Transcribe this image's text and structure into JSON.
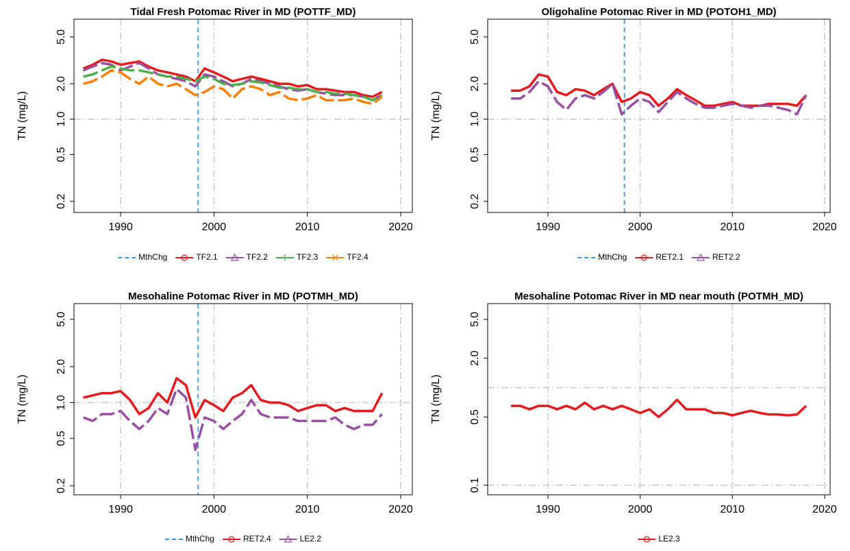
{
  "chart_data": [
    {
      "type": "line",
      "title": "Tidal Fresh Potomac River in MD (POTTF_MD)",
      "y_label": "TN (mg/L)",
      "log_y": true,
      "grid": true,
      "xlim": [
        1985,
        2021.25
      ],
      "xticks": [
        1990,
        2000,
        2010,
        2020
      ],
      "ylim": [
        0.161,
        7.08
      ],
      "yticks": [
        0.2,
        0.5,
        {
          "value": 1,
          "label": "1.0"
        },
        {
          "value": 2,
          "label": "2.0"
        },
        {
          "value": 5,
          "label": "5.0"
        }
      ],
      "hlines": [
        1
      ],
      "vline": {
        "name": "MthChg",
        "x": 1998.3,
        "color": "#3399ee"
      },
      "x": [
        1986,
        1987,
        1988,
        1989,
        1990,
        1991,
        1992,
        1993,
        1994,
        1995,
        1996,
        1997,
        1998,
        1999,
        2000,
        2001,
        2002,
        2003,
        2004,
        2005,
        2006,
        2007,
        2008,
        2009,
        2010,
        2011,
        2012,
        2013,
        2014,
        2015,
        2016,
        2017,
        2018
      ],
      "series": [
        {
          "name": "TF2.1",
          "color": "#e41a1c",
          "marker": "circle",
          "values": [
            2.7,
            2.9,
            3.2,
            3.1,
            2.9,
            3.0,
            3.1,
            2.8,
            2.6,
            2.5,
            2.4,
            2.3,
            2.1,
            2.7,
            2.5,
            2.3,
            2.1,
            2.2,
            2.3,
            2.2,
            2.1,
            2.0,
            2.0,
            1.9,
            1.95,
            1.8,
            1.8,
            1.75,
            1.7,
            1.7,
            1.6,
            1.55,
            1.7
          ]
        },
        {
          "name": "TF2.2",
          "color": "#984ea3",
          "marker": "triangle",
          "values": [
            2.6,
            2.8,
            3.0,
            2.9,
            2.6,
            2.8,
            3.0,
            2.7,
            2.4,
            2.3,
            2.2,
            2.1,
            1.9,
            2.4,
            2.3,
            2.1,
            1.9,
            2.0,
            2.2,
            2.1,
            2.0,
            1.9,
            1.8,
            1.75,
            1.8,
            1.7,
            1.65,
            1.6,
            1.6,
            1.6,
            1.55,
            1.45,
            1.6
          ]
        },
        {
          "name": "TF2.3",
          "color": "#4daf4a",
          "marker": "plus",
          "values": [
            2.3,
            2.4,
            2.6,
            2.8,
            2.7,
            2.6,
            2.6,
            2.5,
            2.4,
            2.3,
            2.3,
            2.2,
            2.1,
            2.3,
            2.2,
            2.0,
            1.95,
            2.0,
            2.1,
            2.05,
            1.95,
            1.85,
            1.85,
            1.8,
            1.8,
            1.7,
            1.7,
            1.65,
            1.65,
            1.6,
            1.55,
            1.45,
            1.6
          ]
        },
        {
          "name": "TF2.4",
          "color": "#ff7f00",
          "marker": "x",
          "values": [
            2.0,
            2.1,
            2.3,
            2.6,
            2.5,
            2.2,
            2.0,
            2.3,
            2.0,
            1.9,
            2.0,
            1.8,
            1.6,
            1.7,
            1.9,
            1.8,
            1.5,
            1.8,
            1.9,
            1.8,
            1.6,
            1.7,
            1.5,
            1.45,
            1.5,
            1.6,
            1.45,
            1.45,
            1.45,
            1.5,
            1.4,
            1.35,
            1.55
          ]
        }
      ]
    },
    {
      "type": "line",
      "title": "Oligohaline Potomac River in MD (POTOH1_MD)",
      "y_label": "TN (mg/L)",
      "log_y": true,
      "grid": true,
      "xlim": [
        1983.47,
        2020.6
      ],
      "xticks": [
        1990,
        2000,
        2010,
        2020
      ],
      "ylim": [
        0.161,
        7.08
      ],
      "yticks": [
        0.2,
        0.5,
        {
          "value": 1,
          "label": "1.0"
        },
        {
          "value": 2,
          "label": "2.0"
        },
        {
          "value": 5,
          "label": "5.0"
        }
      ],
      "hlines": [
        1
      ],
      "vline": {
        "name": "MthChg",
        "x": 1998.3,
        "color": "#3399ee"
      },
      "x": [
        1986,
        1987,
        1988,
        1989,
        1990,
        1991,
        1992,
        1993,
        1994,
        1995,
        1996,
        1997,
        1998,
        1999,
        2000,
        2001,
        2002,
        2003,
        2004,
        2005,
        2006,
        2007,
        2008,
        2009,
        2010,
        2011,
        2012,
        2013,
        2014,
        2015,
        2016,
        2017,
        2018
      ],
      "series": [
        {
          "name": "RET2.1",
          "color": "#e41a1c",
          "marker": "circle",
          "values": [
            1.75,
            1.75,
            1.9,
            2.4,
            2.3,
            1.7,
            1.6,
            1.8,
            1.75,
            1.6,
            1.8,
            2.0,
            1.4,
            1.5,
            1.7,
            1.6,
            1.3,
            1.5,
            1.8,
            1.6,
            1.45,
            1.3,
            1.3,
            1.35,
            1.4,
            1.3,
            1.3,
            1.3,
            1.35,
            1.35,
            1.35,
            1.3,
            1.6
          ]
        },
        {
          "name": "RET2.2",
          "color": "#984ea3",
          "marker": "triangle",
          "values": [
            1.5,
            1.5,
            1.7,
            2.1,
            1.9,
            1.4,
            1.2,
            1.5,
            1.6,
            1.5,
            1.7,
            2.0,
            1.1,
            1.3,
            1.5,
            1.4,
            1.15,
            1.4,
            1.7,
            1.5,
            1.35,
            1.25,
            1.25,
            1.3,
            1.35,
            1.3,
            1.25,
            1.3,
            1.3,
            1.25,
            1.2,
            1.1,
            1.6
          ]
        }
      ]
    },
    {
      "type": "line",
      "title": "Mesohaline Potomac River in MD (POTMH_MD)",
      "y_label": "TN (mg/L)",
      "log_y": true,
      "grid": true,
      "xlim": [
        1985,
        2021.25
      ],
      "xticks": [
        1990,
        2000,
        2010,
        2020
      ],
      "ylim": [
        0.168,
        6.78
      ],
      "yticks": [
        0.2,
        0.5,
        {
          "value": 1,
          "label": "1.0"
        },
        {
          "value": 2,
          "label": "2.0"
        },
        {
          "value": 5,
          "label": "5.0"
        }
      ],
      "hlines": [
        1
      ],
      "vline": {
        "name": "MthChg",
        "x": 1998.3,
        "color": "#3399ee"
      },
      "x": [
        1986,
        1987,
        1988,
        1989,
        1990,
        1991,
        1992,
        1993,
        1994,
        1995,
        1996,
        1997,
        1998,
        1999,
        2000,
        2001,
        2002,
        2003,
        2004,
        2005,
        2006,
        2007,
        2008,
        2009,
        2010,
        2011,
        2012,
        2013,
        2014,
        2015,
        2016,
        2017,
        2018
      ],
      "series": [
        {
          "name": "RET2.4",
          "color": "#e41a1c",
          "marker": "circle",
          "values": [
            1.1,
            1.15,
            1.2,
            1.2,
            1.25,
            1.05,
            0.8,
            0.9,
            1.2,
            1.0,
            1.6,
            1.4,
            0.75,
            1.05,
            0.95,
            0.85,
            1.1,
            1.2,
            1.4,
            1.05,
            1.0,
            1.0,
            0.95,
            0.85,
            0.9,
            0.95,
            0.95,
            0.85,
            0.9,
            0.85,
            0.85,
            0.85,
            1.2
          ]
        },
        {
          "name": "LE2.2",
          "color": "#984ea3",
          "marker": "triangle",
          "values": [
            0.75,
            0.7,
            0.8,
            0.8,
            0.85,
            0.7,
            0.6,
            0.7,
            0.9,
            0.8,
            1.3,
            1.1,
            0.4,
            0.75,
            0.7,
            0.6,
            0.7,
            0.8,
            1.05,
            0.8,
            0.75,
            0.75,
            0.75,
            0.7,
            0.7,
            0.7,
            0.7,
            0.75,
            0.65,
            0.6,
            0.65,
            0.65,
            0.8
          ]
        }
      ]
    },
    {
      "type": "line",
      "title": "Mesohaline Potomac River in MD near mouth (POTMH_MD)",
      "y_label": "TN (mg/L)",
      "log_y": true,
      "grid": true,
      "xlim": [
        1983.47,
        2020.6
      ],
      "xticks": [
        1990,
        2000,
        2010,
        2020
      ],
      "ylim": [
        0.0797,
        7.26
      ],
      "yticks": [
        0.1,
        0.5,
        {
          "value": 2,
          "label": "2.0"
        },
        {
          "value": 5,
          "label": "5.0"
        }
      ],
      "hlines": [
        0.1,
        1
      ],
      "x": [
        1986,
        1987,
        1988,
        1989,
        1990,
        1991,
        1992,
        1993,
        1994,
        1995,
        1996,
        1997,
        1998,
        1999,
        2000,
        2001,
        2002,
        2003,
        2004,
        2005,
        2006,
        2007,
        2008,
        2009,
        2010,
        2011,
        2012,
        2013,
        2014,
        2015,
        2016,
        2017,
        2018
      ],
      "series": [
        {
          "name": "LE2.3",
          "color": "#e41a1c",
          "marker": "circle",
          "values": [
            0.65,
            0.65,
            0.6,
            0.65,
            0.65,
            0.6,
            0.65,
            0.6,
            0.7,
            0.6,
            0.65,
            0.6,
            0.65,
            0.6,
            0.55,
            0.6,
            0.5,
            0.6,
            0.75,
            0.6,
            0.6,
            0.6,
            0.55,
            0.55,
            0.52,
            0.55,
            0.58,
            0.55,
            0.53,
            0.53,
            0.52,
            0.53,
            0.65
          ]
        }
      ]
    }
  ]
}
